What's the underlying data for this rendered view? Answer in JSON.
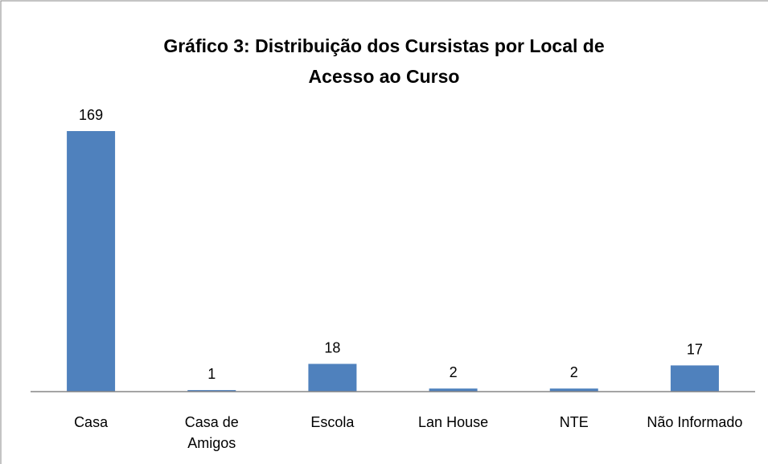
{
  "chart_data": {
    "type": "bar",
    "title": "Gráfico 3: Distribuição dos Cursistas por Local de Acesso ao Curso",
    "categories": [
      "Casa",
      "Casa de Amigos",
      "Escola",
      "Lan House",
      "NTE",
      "Não Informado"
    ],
    "values": [
      169,
      1,
      18,
      2,
      2,
      17
    ],
    "color": "#4f81bd"
  }
}
